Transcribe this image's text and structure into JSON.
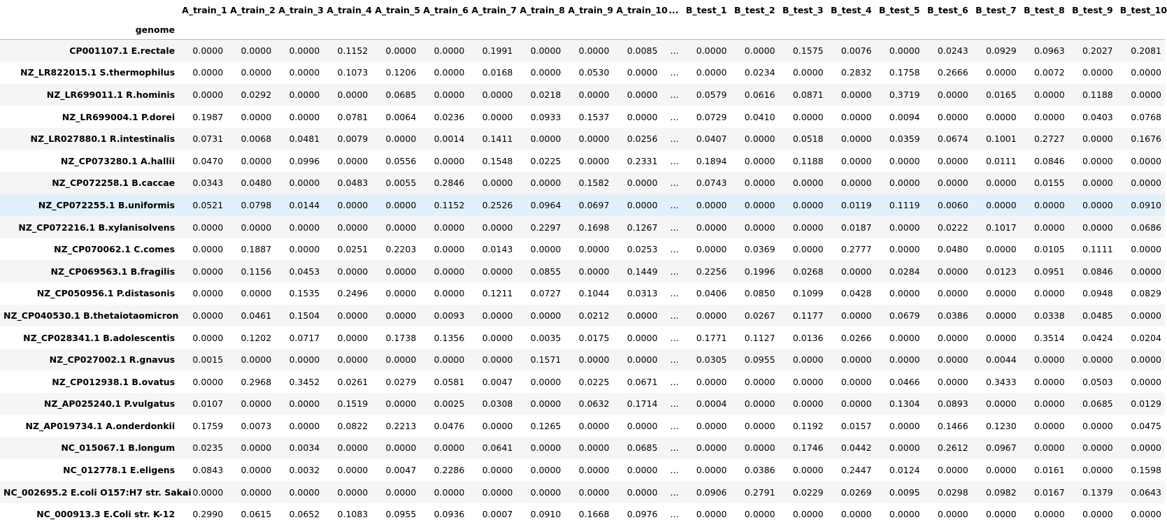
{
  "index_name": "genome",
  "columns": [
    "A_train_1",
    "A_train_2",
    "A_train_3",
    "A_train_4",
    "A_train_5",
    "A_train_6",
    "A_train_7",
    "A_train_8",
    "A_train_9",
    "A_train_10",
    "...",
    "B_test_1",
    "B_test_2",
    "B_test_3",
    "B_test_4",
    "B_test_5",
    "B_test_6",
    "B_test_7",
    "B_test_8",
    "B_test_9",
    "B_test_10"
  ],
  "rows": [
    {
      "label": "CP001107.1 E.rectale",
      "values": [
        "0.0000",
        "0.0000",
        "0.0000",
        "0.1152",
        "0.0000",
        "0.0000",
        "0.1991",
        "0.0000",
        "0.0000",
        "0.0085",
        "...",
        "0.0000",
        "0.0000",
        "0.1575",
        "0.0076",
        "0.0000",
        "0.0243",
        "0.0929",
        "0.0963",
        "0.2027",
        "0.2081"
      ]
    },
    {
      "label": "NZ_LR822015.1 S.thermophilus",
      "values": [
        "0.0000",
        "0.0000",
        "0.0000",
        "0.1073",
        "0.1206",
        "0.0000",
        "0.0168",
        "0.0000",
        "0.0530",
        "0.0000",
        "...",
        "0.0000",
        "0.0234",
        "0.0000",
        "0.2832",
        "0.1758",
        "0.2666",
        "0.0000",
        "0.0072",
        "0.0000",
        "0.0000"
      ]
    },
    {
      "label": "NZ_LR699011.1 R.hominis",
      "values": [
        "0.0000",
        "0.0292",
        "0.0000",
        "0.0000",
        "0.0685",
        "0.0000",
        "0.0000",
        "0.0218",
        "0.0000",
        "0.0000",
        "...",
        "0.0579",
        "0.0616",
        "0.0871",
        "0.0000",
        "0.3719",
        "0.0000",
        "0.0165",
        "0.0000",
        "0.1188",
        "0.0000"
      ]
    },
    {
      "label": "NZ_LR699004.1 P.dorei",
      "values": [
        "0.1987",
        "0.0000",
        "0.0000",
        "0.0781",
        "0.0064",
        "0.0236",
        "0.0000",
        "0.0933",
        "0.1537",
        "0.0000",
        "...",
        "0.0729",
        "0.0410",
        "0.0000",
        "0.0000",
        "0.0094",
        "0.0000",
        "0.0000",
        "0.0000",
        "0.0403",
        "0.0768"
      ]
    },
    {
      "label": "NZ_LR027880.1 R.intestinalis",
      "values": [
        "0.0731",
        "0.0068",
        "0.0481",
        "0.0079",
        "0.0000",
        "0.0014",
        "0.1411",
        "0.0000",
        "0.0000",
        "0.0256",
        "...",
        "0.0407",
        "0.0000",
        "0.0518",
        "0.0000",
        "0.0359",
        "0.0674",
        "0.1001",
        "0.2727",
        "0.0000",
        "0.1676"
      ]
    },
    {
      "label": "NZ_CP073280.1 A.hallii",
      "values": [
        "0.0470",
        "0.0000",
        "0.0996",
        "0.0000",
        "0.0556",
        "0.0000",
        "0.1548",
        "0.0225",
        "0.0000",
        "0.2331",
        "...",
        "0.1894",
        "0.0000",
        "0.1188",
        "0.0000",
        "0.0000",
        "0.0000",
        "0.0111",
        "0.0846",
        "0.0000",
        "0.0000"
      ]
    },
    {
      "label": "NZ_CP072258.1 B.caccae",
      "values": [
        "0.0343",
        "0.0480",
        "0.0000",
        "0.0483",
        "0.0055",
        "0.2846",
        "0.0000",
        "0.0000",
        "0.1582",
        "0.0000",
        "...",
        "0.0743",
        "0.0000",
        "0.0000",
        "0.0000",
        "0.0000",
        "0.0000",
        "0.0000",
        "0.0155",
        "0.0000",
        "0.0000"
      ]
    },
    {
      "label": "NZ_CP072255.1 B.uniformis",
      "hover": true,
      "values": [
        "0.0521",
        "0.0798",
        "0.0144",
        "0.0000",
        "0.0000",
        "0.1152",
        "0.2526",
        "0.0964",
        "0.0697",
        "0.0000",
        "...",
        "0.0000",
        "0.0000",
        "0.0000",
        "0.0119",
        "0.1119",
        "0.0060",
        "0.0000",
        "0.0000",
        "0.0000",
        "0.0910"
      ]
    },
    {
      "label": "NZ_CP072216.1 B.xylanisolvens",
      "values": [
        "0.0000",
        "0.0000",
        "0.0000",
        "0.0000",
        "0.0000",
        "0.0000",
        "0.0000",
        "0.2297",
        "0.1698",
        "0.1267",
        "...",
        "0.0000",
        "0.0000",
        "0.0000",
        "0.0187",
        "0.0000",
        "0.0222",
        "0.1017",
        "0.0000",
        "0.0000",
        "0.0686"
      ]
    },
    {
      "label": "NZ_CP070062.1 C.comes",
      "values": [
        "0.0000",
        "0.1887",
        "0.0000",
        "0.0251",
        "0.2203",
        "0.0000",
        "0.0143",
        "0.0000",
        "0.0000",
        "0.0253",
        "...",
        "0.0000",
        "0.0369",
        "0.0000",
        "0.2777",
        "0.0000",
        "0.0480",
        "0.0000",
        "0.0105",
        "0.1111",
        "0.0000"
      ]
    },
    {
      "label": "NZ_CP069563.1 B.fragilis",
      "values": [
        "0.0000",
        "0.1156",
        "0.0453",
        "0.0000",
        "0.0000",
        "0.0000",
        "0.0000",
        "0.0855",
        "0.0000",
        "0.1449",
        "...",
        "0.2256",
        "0.1996",
        "0.0268",
        "0.0000",
        "0.0284",
        "0.0000",
        "0.0123",
        "0.0951",
        "0.0846",
        "0.0000"
      ]
    },
    {
      "label": "NZ_CP050956.1 P.distasonis",
      "values": [
        "0.0000",
        "0.0000",
        "0.1535",
        "0.2496",
        "0.0000",
        "0.0000",
        "0.1211",
        "0.0727",
        "0.1044",
        "0.0313",
        "...",
        "0.0406",
        "0.0850",
        "0.1099",
        "0.0428",
        "0.0000",
        "0.0000",
        "0.0000",
        "0.0000",
        "0.0948",
        "0.0829"
      ]
    },
    {
      "label": "NZ_CP040530.1 B.thetaiotaomicron",
      "values": [
        "0.0000",
        "0.0461",
        "0.1504",
        "0.0000",
        "0.0000",
        "0.0093",
        "0.0000",
        "0.0000",
        "0.0212",
        "0.0000",
        "...",
        "0.0000",
        "0.0267",
        "0.1177",
        "0.0000",
        "0.0679",
        "0.0386",
        "0.0000",
        "0.0338",
        "0.0485",
        "0.0000"
      ]
    },
    {
      "label": "NZ_CP028341.1 B.adolescentis",
      "values": [
        "0.0000",
        "0.1202",
        "0.0717",
        "0.0000",
        "0.1738",
        "0.1356",
        "0.0000",
        "0.0035",
        "0.0175",
        "0.0000",
        "...",
        "0.1771",
        "0.1127",
        "0.0136",
        "0.0266",
        "0.0000",
        "0.0000",
        "0.0000",
        "0.3514",
        "0.0424",
        "0.0204"
      ]
    },
    {
      "label": "NZ_CP027002.1 R.gnavus",
      "values": [
        "0.0015",
        "0.0000",
        "0.0000",
        "0.0000",
        "0.0000",
        "0.0000",
        "0.0000",
        "0.1571",
        "0.0000",
        "0.0000",
        "...",
        "0.0305",
        "0.0955",
        "0.0000",
        "0.0000",
        "0.0000",
        "0.0000",
        "0.0044",
        "0.0000",
        "0.0000",
        "0.0000"
      ]
    },
    {
      "label": "NZ_CP012938.1 B.ovatus",
      "values": [
        "0.0000",
        "0.2968",
        "0.3452",
        "0.0261",
        "0.0279",
        "0.0581",
        "0.0047",
        "0.0000",
        "0.0225",
        "0.0671",
        "...",
        "0.0000",
        "0.0000",
        "0.0000",
        "0.0000",
        "0.0466",
        "0.0000",
        "0.3433",
        "0.0000",
        "0.0503",
        "0.0000"
      ]
    },
    {
      "label": "NZ_AP025240.1 P.vulgatus",
      "values": [
        "0.0107",
        "0.0000",
        "0.0000",
        "0.1519",
        "0.0000",
        "0.0025",
        "0.0308",
        "0.0000",
        "0.0632",
        "0.1714",
        "...",
        "0.0004",
        "0.0000",
        "0.0000",
        "0.0000",
        "0.1304",
        "0.0893",
        "0.0000",
        "0.0000",
        "0.0685",
        "0.0129"
      ]
    },
    {
      "label": "NZ_AP019734.1 A.onderdonkii",
      "values": [
        "0.1759",
        "0.0073",
        "0.0000",
        "0.0822",
        "0.2213",
        "0.0476",
        "0.0000",
        "0.1265",
        "0.0000",
        "0.0000",
        "...",
        "0.0000",
        "0.0000",
        "0.1192",
        "0.0157",
        "0.0000",
        "0.1466",
        "0.1230",
        "0.0000",
        "0.0000",
        "0.0475"
      ]
    },
    {
      "label": "NC_015067.1 B.longum",
      "values": [
        "0.0235",
        "0.0000",
        "0.0034",
        "0.0000",
        "0.0000",
        "0.0000",
        "0.0641",
        "0.0000",
        "0.0000",
        "0.0685",
        "...",
        "0.0000",
        "0.0000",
        "0.1746",
        "0.0442",
        "0.0000",
        "0.2612",
        "0.0967",
        "0.0000",
        "0.0000",
        "0.0000"
      ]
    },
    {
      "label": "NC_012778.1 E.eligens",
      "values": [
        "0.0843",
        "0.0000",
        "0.0032",
        "0.0000",
        "0.0047",
        "0.2286",
        "0.0000",
        "0.0000",
        "0.0000",
        "0.0000",
        "...",
        "0.0000",
        "0.0386",
        "0.0000",
        "0.2447",
        "0.0124",
        "0.0000",
        "0.0000",
        "0.0161",
        "0.0000",
        "0.1598"
      ]
    },
    {
      "label": "NC_002695.2 E.coli O157:H7 str. Sakai",
      "values": [
        "0.0000",
        "0.0000",
        "0.0000",
        "0.0000",
        "0.0000",
        "0.0000",
        "0.0000",
        "0.0000",
        "0.0000",
        "0.0000",
        "...",
        "0.0906",
        "0.2791",
        "0.0229",
        "0.0269",
        "0.0095",
        "0.0298",
        "0.0982",
        "0.0167",
        "0.1379",
        "0.0643"
      ]
    },
    {
      "label": "NC_000913.3 E.Coli str. K-12",
      "values": [
        "0.2990",
        "0.0615",
        "0.0652",
        "0.1083",
        "0.0955",
        "0.0936",
        "0.0007",
        "0.0910",
        "0.1668",
        "0.0976",
        "...",
        "0.0000",
        "0.0000",
        "0.0000",
        "0.0000",
        "0.0000",
        "0.0000",
        "0.0000",
        "0.0000",
        "0.0000",
        "0.0000"
      ]
    }
  ]
}
